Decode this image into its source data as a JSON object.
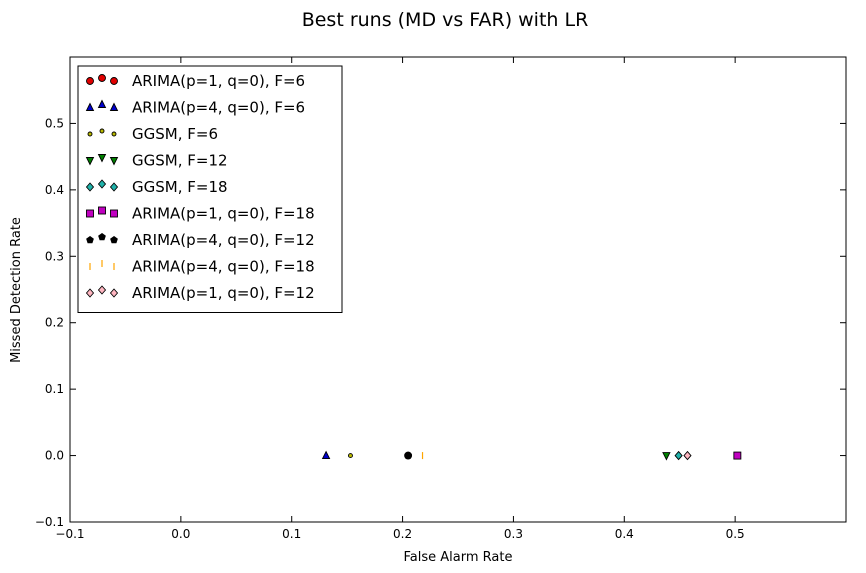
{
  "chart_data": {
    "type": "scatter",
    "title": "Best runs (MD vs FAR) with LR",
    "xlabel": "False Alarm Rate",
    "ylabel": "Missed Detection Rate",
    "xlim": [
      -0.1,
      0.6
    ],
    "ylim": [
      -0.1,
      0.6
    ],
    "xticks": [
      -0.1,
      0.0,
      0.1,
      0.2,
      0.3,
      0.4,
      0.5
    ],
    "yticks": [
      -0.1,
      0.0,
      0.1,
      0.2,
      0.3,
      0.4,
      0.5
    ],
    "grid": false,
    "legend_position": "top-left",
    "series": [
      {
        "name": "ARIMA(p=1, q=0), F=6",
        "marker": "circle",
        "color": "#e00000",
        "size": "normal",
        "points": [
          [
            0.205,
            0.0
          ]
        ]
      },
      {
        "name": "ARIMA(p=4, q=0), F=6",
        "marker": "triangle-up",
        "color": "#0000cc",
        "size": "normal",
        "points": [
          [
            0.131,
            0.0
          ]
        ]
      },
      {
        "name": "GGSM, F=6",
        "marker": "circle",
        "color": "#b8b800",
        "size": "small",
        "points": [
          [
            0.153,
            0.0
          ]
        ]
      },
      {
        "name": "GGSM, F=12",
        "marker": "triangle-down",
        "color": "#008000",
        "size": "normal",
        "points": [
          [
            0.438,
            0.0
          ]
        ]
      },
      {
        "name": "GGSM, F=18",
        "marker": "diamond",
        "color": "#20b2aa",
        "size": "normal",
        "points": [
          [
            0.449,
            0.0
          ]
        ]
      },
      {
        "name": "ARIMA(p=1, q=0), F=18",
        "marker": "square",
        "color": "#c000c0",
        "size": "normal",
        "points": [
          [
            0.502,
            0.0
          ]
        ]
      },
      {
        "name": "ARIMA(p=4, q=0), F=12",
        "marker": "pentagon",
        "color": "#000000",
        "size": "normal",
        "points": [
          [
            0.205,
            0.0
          ]
        ]
      },
      {
        "name": "ARIMA(p=4, q=0), F=18",
        "marker": "vline",
        "color": "#ffa500",
        "size": "normal",
        "points": [
          [
            0.218,
            0.0
          ]
        ]
      },
      {
        "name": "ARIMA(p=1, q=0), F=12",
        "marker": "diamond",
        "color": "#ffb6c1",
        "size": "normal",
        "points": [
          [
            0.457,
            0.0
          ]
        ]
      }
    ]
  }
}
